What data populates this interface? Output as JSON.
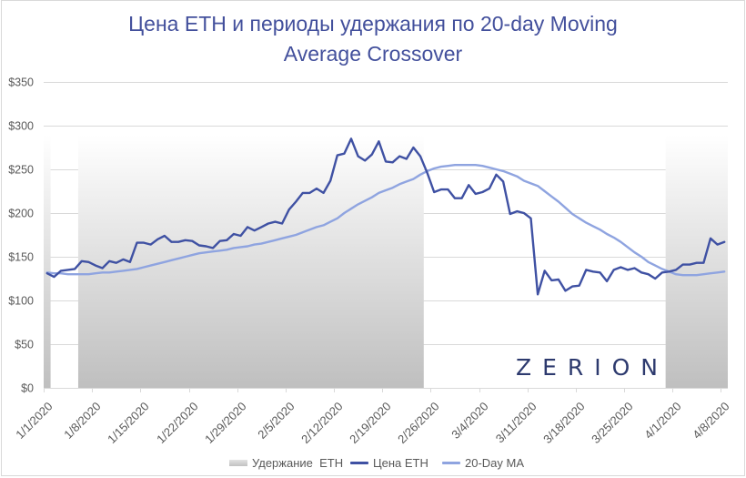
{
  "chart_data": {
    "type": "line",
    "combo": "line + column(holding periods)",
    "title": "Цена ETH и периоды удержания по 20-day Moving Average Crossover",
    "title_lines": [
      "Цена ETH и периоды удержания по 20-day Moving",
      "Average Crossover"
    ],
    "xlabel": "",
    "ylabel": "",
    "ylim": [
      0,
      350
    ],
    "y_tick_labels": [
      "$0",
      "$50",
      "$100",
      "$150",
      "$200",
      "$250",
      "$300",
      "$350"
    ],
    "y_tick_values": [
      0,
      50,
      100,
      150,
      200,
      250,
      300,
      350
    ],
    "x_tick_labels": [
      "1/1/2020",
      "1/8/2020",
      "1/15/2020",
      "1/22/2020",
      "1/29/2020",
      "2/5/2020",
      "2/12/2020",
      "2/19/2020",
      "2/26/2020",
      "3/4/2020",
      "3/11/2020",
      "3/18/2020",
      "3/25/2020",
      "4/1/2020",
      "4/8/2020"
    ],
    "x_tick_every": 7,
    "grid": true,
    "legend_position": "bottom",
    "categories": [
      "1/1/2020",
      "1/2/2020",
      "1/3/2020",
      "1/4/2020",
      "1/5/2020",
      "1/6/2020",
      "1/7/2020",
      "1/8/2020",
      "1/9/2020",
      "1/10/2020",
      "1/11/2020",
      "1/12/2020",
      "1/13/2020",
      "1/14/2020",
      "1/15/2020",
      "1/16/2020",
      "1/17/2020",
      "1/18/2020",
      "1/19/2020",
      "1/20/2020",
      "1/21/2020",
      "1/22/2020",
      "1/23/2020",
      "1/24/2020",
      "1/25/2020",
      "1/26/2020",
      "1/27/2020",
      "1/28/2020",
      "1/29/2020",
      "1/30/2020",
      "1/31/2020",
      "2/1/2020",
      "2/2/2020",
      "2/3/2020",
      "2/4/2020",
      "2/5/2020",
      "2/6/2020",
      "2/7/2020",
      "2/8/2020",
      "2/9/2020",
      "2/10/2020",
      "2/11/2020",
      "2/12/2020",
      "2/13/2020",
      "2/14/2020",
      "2/15/2020",
      "2/16/2020",
      "2/17/2020",
      "2/18/2020",
      "2/19/2020",
      "2/20/2020",
      "2/21/2020",
      "2/22/2020",
      "2/23/2020",
      "2/24/2020",
      "2/25/2020",
      "2/26/2020",
      "2/27/2020",
      "2/28/2020",
      "2/29/2020",
      "3/1/2020",
      "3/2/2020",
      "3/3/2020",
      "3/4/2020",
      "3/5/2020",
      "3/6/2020",
      "3/7/2020",
      "3/8/2020",
      "3/9/2020",
      "3/10/2020",
      "3/11/2020",
      "3/12/2020",
      "3/13/2020",
      "3/14/2020",
      "3/15/2020",
      "3/16/2020",
      "3/17/2020",
      "3/18/2020",
      "3/19/2020",
      "3/20/2020",
      "3/21/2020",
      "3/22/2020",
      "3/23/2020",
      "3/24/2020",
      "3/25/2020",
      "3/26/2020",
      "3/27/2020",
      "3/28/2020",
      "3/29/2020",
      "3/30/2020",
      "3/31/2020",
      "4/1/2020",
      "4/2/2020",
      "4/3/2020",
      "4/4/2020",
      "4/5/2020",
      "4/6/2020",
      "4/7/2020",
      "4/8/2020"
    ],
    "series": [
      {
        "name": "Удержание  ETH",
        "kind": "column",
        "color_top": "#FFFFFF",
        "color_bottom": "#BFBFBF",
        "values": [
          290,
          0,
          0,
          0,
          0,
          290,
          290,
          290,
          290,
          290,
          290,
          290,
          290,
          290,
          290,
          290,
          290,
          290,
          290,
          290,
          290,
          290,
          290,
          290,
          290,
          290,
          290,
          290,
          290,
          290,
          290,
          290,
          290,
          290,
          290,
          290,
          290,
          290,
          290,
          290,
          290,
          290,
          290,
          290,
          290,
          290,
          290,
          290,
          290,
          290,
          290,
          290,
          290,
          290,
          290,
          0,
          0,
          0,
          0,
          0,
          0,
          0,
          0,
          0,
          0,
          0,
          0,
          0,
          0,
          0,
          0,
          0,
          0,
          0,
          0,
          0,
          0,
          0,
          0,
          0,
          0,
          0,
          0,
          0,
          0,
          0,
          0,
          0,
          0,
          0,
          290,
          290,
          290,
          290,
          290,
          290,
          290,
          290,
          290
        ]
      },
      {
        "name": "Цена ETH",
        "kind": "line",
        "color": "#3F51A3",
        "values": [
          131,
          127,
          134,
          135,
          136,
          145,
          144,
          140,
          137,
          145,
          143,
          147,
          144,
          166,
          166,
          164,
          170,
          174,
          167,
          167,
          169,
          168,
          163,
          162,
          160,
          168,
          169,
          176,
          174,
          184,
          180,
          184,
          188,
          190,
          188,
          204,
          213,
          223,
          223,
          228,
          223,
          237,
          266,
          268,
          285,
          265,
          260,
          267,
          282,
          259,
          258,
          265,
          262,
          275,
          265,
          246,
          224,
          227,
          227,
          217,
          217,
          232,
          222,
          224,
          228,
          244,
          236,
          199,
          202,
          200,
          194,
          107,
          134,
          123,
          124,
          111,
          116,
          117,
          135,
          133,
          132,
          122,
          135,
          138,
          135,
          137,
          132,
          130,
          125,
          132,
          133,
          135,
          141,
          141,
          143,
          143,
          171,
          164,
          167
        ]
      },
      {
        "name": "20-Day MA",
        "kind": "line",
        "color": "#8FA4E0",
        "values": [
          132,
          131,
          131,
          130,
          130,
          130,
          130,
          131,
          132,
          132,
          133,
          134,
          135,
          136,
          138,
          140,
          142,
          144,
          146,
          148,
          150,
          152,
          154,
          155,
          156,
          157,
          158,
          160,
          161,
          162,
          164,
          165,
          167,
          169,
          171,
          173,
          175,
          178,
          181,
          184,
          186,
          190,
          194,
          200,
          205,
          210,
          214,
          218,
          223,
          226,
          229,
          233,
          236,
          239,
          244,
          248,
          251,
          253,
          254,
          255,
          255,
          255,
          255,
          254,
          252,
          250,
          248,
          245,
          242,
          237,
          234,
          231,
          225,
          219,
          213,
          206,
          199,
          194,
          189,
          185,
          181,
          176,
          172,
          167,
          161,
          155,
          150,
          144,
          140,
          136,
          133,
          130,
          129,
          129,
          129,
          130,
          131,
          132,
          133
        ]
      }
    ],
    "legend": [
      {
        "label": "Удержание  ETH",
        "swatch": "gradient-bar"
      },
      {
        "label": "Цена ETH",
        "swatch": "line",
        "color": "#3F51A3"
      },
      {
        "label": "20-Day MA",
        "swatch": "line",
        "color": "#8FA4E0"
      }
    ]
  },
  "watermark": {
    "text": "ZERION",
    "color": "#2D3A6E"
  },
  "colors": {
    "title": "#43509C",
    "gridline": "#D9D9D9",
    "axis_text": "#595959",
    "price_line": "#3F51A3",
    "ma_line": "#8FA4E0",
    "holding_bottom": "#BFBFBF"
  }
}
